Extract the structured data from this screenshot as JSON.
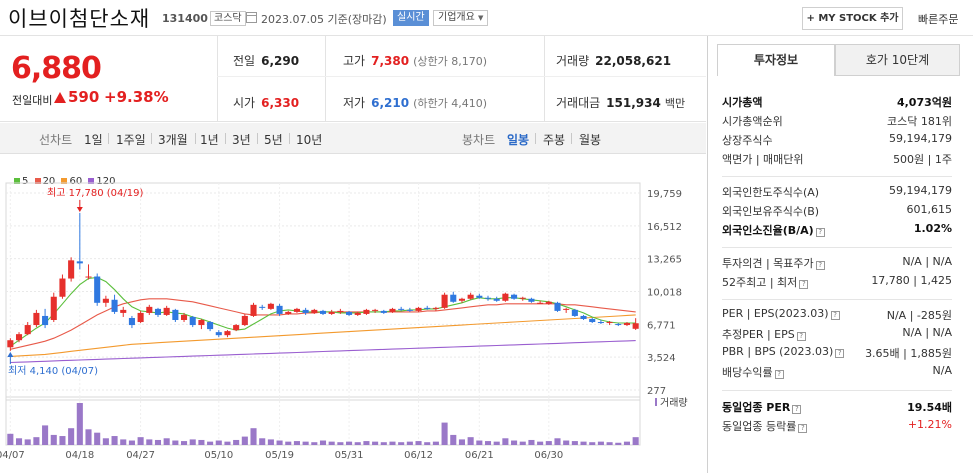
{
  "header": {
    "name": "이브이첨단소재",
    "code": "131400",
    "market": "코스닥",
    "date": "2023.07.05",
    "basis": "기준(장마감)",
    "realtime": "실시간",
    "corp_info": "기업개요",
    "my_stock": "+ MY STOCK 추가",
    "quick_order": "빠른주문"
  },
  "quote": {
    "price": "6,880",
    "change_label": "전일대비",
    "change": "590",
    "change_pct": "+9.38%",
    "prev_label": "전일",
    "prev": "6,290",
    "high_label": "고가",
    "high": "7,380",
    "upper_limit": "(상한가 8,170)",
    "volume_label": "거래량",
    "volume": "22,058,621",
    "open_label": "시가",
    "open": "6,330",
    "low_label": "저가",
    "low": "6,210",
    "lower_limit": "(하한가 4,410)",
    "amount_label": "거래대금",
    "amount": "151,934",
    "amount_unit": "백만"
  },
  "chart_tabs": {
    "line_label": "선차트",
    "periods": [
      "1일",
      "1주일",
      "3개월",
      "1년",
      "3년",
      "5년",
      "10년"
    ],
    "candle_label": "봉차트",
    "candles": [
      "일봉",
      "주봉",
      "월봉"
    ]
  },
  "chart_data": {
    "type": "candlestick",
    "legend": [
      "5",
      "20",
      "60",
      "120"
    ],
    "colors": {
      "ma5": "#5bbf3c",
      "ma20": "#e85a4a",
      "ma60": "#f39a2e",
      "ma120": "#9a5fd0",
      "up": "#e6302c",
      "down": "#2f78e0",
      "vol": "#9a78c8"
    },
    "y_ticks": [
      "19,759",
      "16,512",
      "13,265",
      "10,018",
      "6,771",
      "3,524",
      "277"
    ],
    "ylim": [
      277,
      19759
    ],
    "x_labels": [
      "04/07",
      "04/18",
      "04/27",
      "05/10",
      "05/19",
      "05/31",
      "06/12",
      "06/21",
      "06/30"
    ],
    "high_note": "최고 17,780 (04/19)",
    "low_note": "최저 4,140 (04/07)",
    "volume_label": "거래량",
    "candles_ohlc": [
      [
        4500,
        5400,
        4140,
        5200
      ],
      [
        5200,
        6000,
        5000,
        5800
      ],
      [
        5800,
        7000,
        5700,
        6700
      ],
      [
        6700,
        8200,
        6500,
        7900
      ],
      [
        7600,
        8300,
        6400,
        6700
      ],
      [
        7200,
        9900,
        7000,
        9500
      ],
      [
        9500,
        11700,
        9300,
        11300
      ],
      [
        11300,
        13400,
        11000,
        13100
      ],
      [
        13000,
        17780,
        12200,
        12800
      ],
      [
        11400,
        12700,
        11200,
        11500
      ],
      [
        11500,
        11800,
        8600,
        8900
      ],
      [
        8900,
        9600,
        8500,
        9300
      ],
      [
        9200,
        9700,
        7800,
        8000
      ],
      [
        7900,
        8500,
        7500,
        8200
      ],
      [
        7400,
        7600,
        6400,
        6700
      ],
      [
        7000,
        8100,
        6900,
        7900
      ],
      [
        7900,
        8700,
        7700,
        8500
      ],
      [
        8300,
        8400,
        7500,
        7700
      ],
      [
        7700,
        8600,
        7600,
        8400
      ],
      [
        8200,
        8300,
        7000,
        7200
      ],
      [
        7200,
        7900,
        7000,
        7700
      ],
      [
        7500,
        7600,
        6500,
        6700
      ],
      [
        6700,
        7300,
        6300,
        7200
      ],
      [
        7000,
        7100,
        6100,
        6300
      ],
      [
        6000,
        6200,
        5500,
        5700
      ],
      [
        5700,
        6200,
        5500,
        6100
      ],
      [
        6200,
        6800,
        6100,
        6700
      ],
      [
        6700,
        7800,
        6600,
        7600
      ],
      [
        7600,
        8900,
        7500,
        8700
      ],
      [
        8500,
        8700,
        8200,
        8400
      ],
      [
        8300,
        8900,
        8200,
        8800
      ],
      [
        8600,
        8800,
        7600,
        7800
      ],
      [
        7800,
        8100,
        7700,
        8000
      ],
      [
        8000,
        8400,
        7900,
        8300
      ],
      [
        8200,
        8400,
        7700,
        7900
      ],
      [
        7900,
        8300,
        7800,
        8200
      ],
      [
        8100,
        8200,
        7700,
        7800
      ],
      [
        7800,
        8200,
        7700,
        8000
      ],
      [
        8000,
        8300,
        7800,
        8100
      ],
      [
        8000,
        8100,
        7600,
        7700
      ],
      [
        7700,
        8000,
        7600,
        7900
      ],
      [
        7800,
        8300,
        7700,
        8200
      ],
      [
        8100,
        8300,
        7900,
        8200
      ],
      [
        8100,
        8200,
        7800,
        7900
      ],
      [
        8000,
        8400,
        7900,
        8300
      ],
      [
        8300,
        8500,
        8100,
        8200
      ],
      [
        8200,
        8400,
        8000,
        8100
      ],
      [
        8100,
        8500,
        8000,
        8400
      ],
      [
        8400,
        8600,
        8200,
        8300
      ],
      [
        8300,
        8500,
        8100,
        8400
      ],
      [
        8400,
        9900,
        8300,
        9700
      ],
      [
        9700,
        10000,
        8900,
        9000
      ],
      [
        9100,
        9400,
        8900,
        9300
      ],
      [
        9300,
        9900,
        9200,
        9700
      ],
      [
        9600,
        9800,
        9300,
        9400
      ],
      [
        9400,
        9600,
        9100,
        9300
      ],
      [
        9300,
        9500,
        9000,
        9100
      ],
      [
        9100,
        9900,
        9000,
        9800
      ],
      [
        9700,
        9800,
        9200,
        9300
      ],
      [
        9300,
        9500,
        9100,
        9400
      ],
      [
        9300,
        9400,
        8900,
        9000
      ],
      [
        8900,
        9100,
        8800,
        8900
      ],
      [
        8800,
        9100,
        8700,
        9000
      ],
      [
        8900,
        9000,
        8000,
        8100
      ],
      [
        8200,
        8400,
        7900,
        8300
      ],
      [
        8200,
        8300,
        7500,
        7600
      ],
      [
        7600,
        7700,
        7200,
        7300
      ],
      [
        7300,
        7400,
        6900,
        7000
      ],
      [
        7000,
        7200,
        6800,
        6900
      ],
      [
        6900,
        7100,
        6700,
        7000
      ],
      [
        6800,
        6900,
        6600,
        6700
      ],
      [
        6700,
        7000,
        6600,
        6900
      ],
      [
        6330,
        7380,
        6210,
        6880
      ]
    ],
    "ma5": [
      4600,
      5200,
      5800,
      6400,
      6900,
      7800,
      8800,
      9800,
      10700,
      11300,
      11400,
      11000,
      10200,
      9300,
      8500,
      8100,
      8000,
      7900,
      8000,
      7900,
      7800,
      7500,
      7300,
      7000,
      6700,
      6400,
      6200,
      6300,
      6800,
      7300,
      7800,
      8100,
      8200,
      8100,
      8000,
      8000,
      8000,
      8000,
      7900,
      7900,
      7900,
      8000,
      8000,
      8000,
      8100,
      8100,
      8200,
      8200,
      8300,
      8300,
      8500,
      8700,
      8900,
      9200,
      9400,
      9300,
      9300,
      9400,
      9400,
      9300,
      9200,
      9100,
      9000,
      8800,
      8500,
      8200,
      7900,
      7500,
      7200,
      7000,
      6900,
      6900,
      6900
    ],
    "ma20": [
      4300,
      4500,
      4700,
      4900,
      5100,
      5400,
      5800,
      6200,
      6700,
      7200,
      7700,
      8100,
      8500,
      8800,
      9000,
      9200,
      9300,
      9300,
      9300,
      9200,
      9100,
      9000,
      8800,
      8600,
      8400,
      8200,
      8000,
      7800,
      7700,
      7700,
      7700,
      7700,
      7800,
      7800,
      7900,
      7900,
      8000,
      8000,
      8000,
      8000,
      8000,
      8000,
      8000,
      8000,
      8000,
      8000,
      8000,
      8000,
      8100,
      8100,
      8200,
      8300,
      8400,
      8500,
      8600,
      8700,
      8700,
      8800,
      8800,
      8800,
      8800,
      8800,
      8800,
      8800,
      8700,
      8700,
      8600,
      8500,
      8400,
      8300,
      8200,
      8100,
      8000
    ],
    "ma60": [
      3600,
      3650,
      3700,
      3750,
      3800,
      3900,
      4000,
      4100,
      4200,
      4300,
      4400,
      4500,
      4600,
      4700,
      4800,
      4850,
      4900,
      4950,
      5000,
      5050,
      5100,
      5150,
      5200,
      5250,
      5300,
      5350,
      5400,
      5450,
      5500,
      5550,
      5600,
      5650,
      5700,
      5750,
      5800,
      5850,
      5900,
      5950,
      6000,
      6050,
      6100,
      6150,
      6200,
      6250,
      6300,
      6350,
      6400,
      6450,
      6500,
      6550,
      6600,
      6650,
      6700,
      6750,
      6800,
      6850,
      6900,
      6950,
      7000,
      7050,
      7100,
      7150,
      7200,
      7250,
      7300,
      7350,
      7400,
      7450,
      7500,
      7550,
      7600,
      7650,
      7700
    ],
    "ma120": [
      3000,
      3030,
      3060,
      3090,
      3120,
      3150,
      3180,
      3210,
      3240,
      3270,
      3300,
      3330,
      3360,
      3390,
      3420,
      3450,
      3480,
      3510,
      3540,
      3570,
      3600,
      3630,
      3660,
      3690,
      3720,
      3750,
      3780,
      3810,
      3840,
      3870,
      3900,
      3930,
      3960,
      3990,
      4020,
      4050,
      4080,
      4110,
      4140,
      4170,
      4200,
      4230,
      4260,
      4290,
      4320,
      4350,
      4380,
      4410,
      4440,
      4470,
      4500,
      4530,
      4560,
      4590,
      4620,
      4650,
      4680,
      4710,
      4740,
      4770,
      4800,
      4830,
      4860,
      4890,
      4920,
      4950,
      4980,
      5010,
      5040,
      5070,
      5100,
      5130,
      5160
    ],
    "volume": [
      20,
      12,
      10,
      14,
      35,
      18,
      16,
      30,
      75,
      28,
      22,
      12,
      16,
      10,
      8,
      14,
      10,
      9,
      12,
      8,
      7,
      10,
      9,
      6,
      8,
      6,
      9,
      15,
      30,
      12,
      10,
      8,
      6,
      7,
      6,
      5,
      8,
      6,
      5,
      6,
      5,
      7,
      6,
      5,
      6,
      5,
      6,
      7,
      5,
      6,
      40,
      18,
      10,
      14,
      8,
      7,
      6,
      12,
      8,
      6,
      9,
      6,
      7,
      12,
      8,
      7,
      6,
      5,
      6,
      5,
      4,
      6,
      14
    ]
  },
  "right_panel": {
    "tab_invest": "투자정보",
    "tab_hoga": "호가 10단계",
    "rows1": [
      {
        "k": "시가총액",
        "v": "4,073억원",
        "bold": true
      },
      {
        "k": "시가총액순위",
        "v": "코스닥 181위"
      },
      {
        "k": "상장주식수",
        "v": "59,194,179"
      },
      {
        "k": "액면가 | 매매단위",
        "v": "500원 | 1주"
      }
    ],
    "rows2": [
      {
        "k": "외국인한도주식수(A)",
        "v": "59,194,179"
      },
      {
        "k": "외국인보유주식수(B)",
        "v": "601,615"
      },
      {
        "k": "외국인소진율(B/A)",
        "v": "1.02%",
        "bold": true
      }
    ],
    "rows3": [
      {
        "k": "투자의견 | 목표주가",
        "v": "N/A | N/A"
      },
      {
        "k": "52주최고 | 최저",
        "v": "17,780 | 1,425"
      }
    ],
    "rows4": [
      {
        "k": "PER | EPS(2023.03)",
        "v": "N/A | -285원"
      },
      {
        "k": "추정PER | EPS",
        "v": "N/A | N/A"
      },
      {
        "k": "PBR | BPS (2023.03)",
        "v": "3.65배 | 1,885원"
      },
      {
        "k": "배당수익률",
        "v": "N/A"
      }
    ],
    "rows5": [
      {
        "k": "동일업종 PER",
        "v": "19.54배",
        "bold": true
      },
      {
        "k": "동일업종 등락률",
        "v": "+1.21%",
        "red": true
      }
    ]
  }
}
